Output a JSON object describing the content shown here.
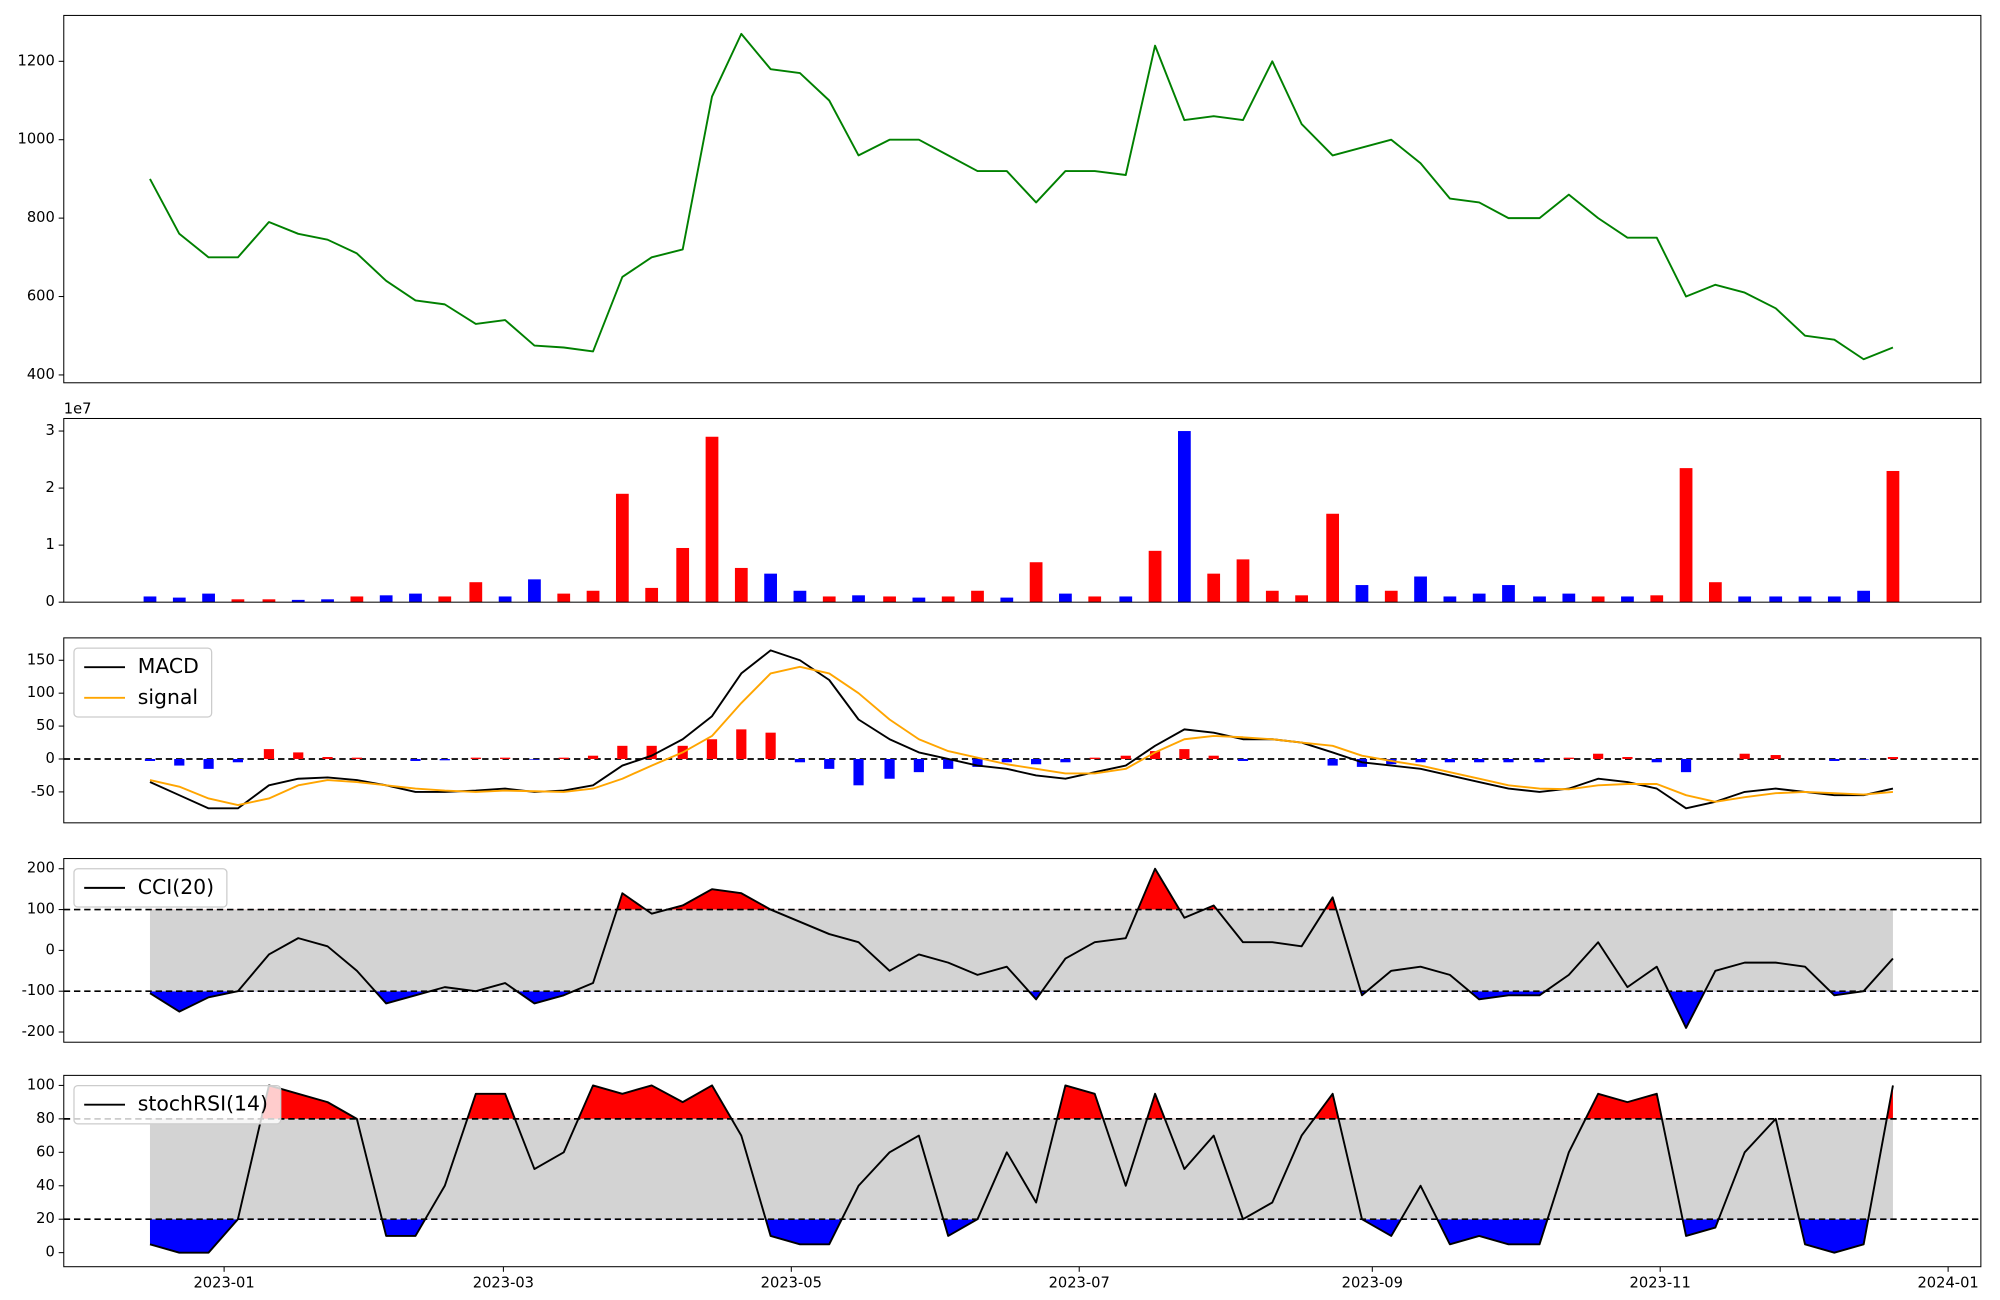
{
  "chart_data": [
    {
      "type": "line",
      "x": [
        2022.957,
        2022.974,
        2022.991,
        2023.008,
        2023.026,
        2023.043,
        2023.06,
        2023.077,
        2023.094,
        2023.111,
        2023.128,
        2023.146,
        2023.163,
        2023.18,
        2023.197,
        2023.214,
        2023.231,
        2023.248,
        2023.266,
        2023.283,
        2023.3,
        2023.317,
        2023.334,
        2023.351,
        2023.368,
        2023.386,
        2023.403,
        2023.42,
        2023.437,
        2023.454,
        2023.471,
        2023.488,
        2023.505,
        2023.523,
        2023.54,
        2023.557,
        2023.574,
        2023.591,
        2023.608,
        2023.625,
        2023.643,
        2023.66,
        2023.677,
        2023.694,
        2023.711,
        2023.728,
        2023.745,
        2023.763,
        2023.78,
        2023.797,
        2023.814,
        2023.831,
        2023.848,
        2023.865,
        2023.882,
        2023.9,
        2023.917,
        2023.934,
        2023.951,
        2023.968
      ],
      "series": [
        {
          "color": "#008000",
          "values": [
            900,
            760,
            700,
            700,
            790,
            760,
            745,
            710,
            640,
            590,
            580,
            530,
            540,
            475,
            470,
            460,
            650,
            700,
            720,
            1110,
            1270,
            1180,
            1170,
            1100,
            960,
            1000,
            1000,
            960,
            920,
            920,
            840,
            920,
            920,
            910,
            1240,
            1050,
            1060,
            1050,
            1200,
            1040,
            960,
            980,
            1000,
            940,
            850,
            840,
            800,
            800,
            860,
            800,
            750,
            750,
            600,
            630,
            610,
            570,
            500,
            490,
            440,
            470
          ]
        }
      ],
      "xlim": [
        2022.907,
        2024.019
      ],
      "ylim": [
        380,
        1317
      ],
      "yticks": [
        400,
        600,
        800,
        1000,
        1200
      ]
    },
    {
      "type": "bar",
      "x": [
        2022.957,
        2022.974,
        2022.991,
        2023.008,
        2023.026,
        2023.043,
        2023.06,
        2023.077,
        2023.094,
        2023.111,
        2023.128,
        2023.146,
        2023.163,
        2023.18,
        2023.197,
        2023.214,
        2023.231,
        2023.248,
        2023.266,
        2023.283,
        2023.3,
        2023.317,
        2023.334,
        2023.351,
        2023.368,
        2023.386,
        2023.403,
        2023.42,
        2023.437,
        2023.454,
        2023.471,
        2023.488,
        2023.505,
        2023.523,
        2023.54,
        2023.557,
        2023.574,
        2023.591,
        2023.608,
        2023.625,
        2023.643,
        2023.66,
        2023.677,
        2023.694,
        2023.711,
        2023.728,
        2023.745,
        2023.763,
        2023.78,
        2023.797,
        2023.814,
        2023.831,
        2023.848,
        2023.865,
        2023.882,
        2023.9,
        2023.917,
        2023.934,
        2023.951,
        2023.968
      ],
      "values": [
        1000000,
        800000,
        1500000,
        500000,
        500000,
        400000,
        500000,
        1000000,
        1200000,
        1500000,
        1000000,
        3500000,
        1000000,
        4000000,
        1500000,
        2000000,
        19000000,
        2500000,
        9500000,
        29000000,
        6000000,
        5000000,
        2000000,
        1000000,
        1200000,
        1000000,
        800000,
        1000000,
        2000000,
        800000,
        7000000,
        1500000,
        1000000,
        1000000,
        9000000,
        30000000,
        5000000,
        7500000,
        2000000,
        1200000,
        15500000,
        3000000,
        2000000,
        4500000,
        1000000,
        1500000,
        3000000,
        1000000,
        1500000,
        1000000,
        1000000,
        1200000,
        23500000,
        3500000,
        1000000,
        1000000,
        1000000,
        1000000,
        2000000,
        23000000
      ],
      "colors": [
        "blue",
        "blue",
        "blue",
        "red",
        "red",
        "blue",
        "blue",
        "red",
        "blue",
        "blue",
        "red",
        "red",
        "blue",
        "blue",
        "red",
        "red",
        "red",
        "red",
        "red",
        "red",
        "red",
        "blue",
        "blue",
        "red",
        "blue",
        "red",
        "blue",
        "red",
        "red",
        "blue",
        "red",
        "blue",
        "red",
        "blue",
        "red",
        "blue",
        "red",
        "red",
        "red",
        "red",
        "red",
        "blue",
        "red",
        "blue",
        "blue",
        "blue",
        "blue",
        "blue",
        "blue",
        "red",
        "blue",
        "red",
        "red",
        "red",
        "blue",
        "blue",
        "blue",
        "blue",
        "blue",
        "red"
      ],
      "offset_label": "1e7",
      "xlim": [
        2022.907,
        2024.019
      ],
      "ylim": [
        0,
        32200000
      ],
      "yticks": [
        0,
        {
          "value": 10000000,
          "label": "1"
        },
        {
          "value": 20000000,
          "label": "2"
        },
        {
          "value": 30000000,
          "label": "3"
        }
      ]
    },
    {
      "type": "line",
      "x": [
        2022.957,
        2022.974,
        2022.991,
        2023.008,
        2023.026,
        2023.043,
        2023.06,
        2023.077,
        2023.094,
        2023.111,
        2023.128,
        2023.146,
        2023.163,
        2023.18,
        2023.197,
        2023.214,
        2023.231,
        2023.248,
        2023.266,
        2023.283,
        2023.3,
        2023.317,
        2023.334,
        2023.351,
        2023.368,
        2023.386,
        2023.403,
        2023.42,
        2023.437,
        2023.454,
        2023.471,
        2023.488,
        2023.505,
        2023.523,
        2023.54,
        2023.557,
        2023.574,
        2023.591,
        2023.608,
        2023.625,
        2023.643,
        2023.66,
        2023.677,
        2023.694,
        2023.711,
        2023.728,
        2023.745,
        2023.763,
        2023.78,
        2023.797,
        2023.814,
        2023.831,
        2023.848,
        2023.865,
        2023.882,
        2023.9,
        2023.917,
        2023.934,
        2023.951,
        2023.968
      ],
      "series": [
        {
          "name": "MACD",
          "color": "#000000",
          "values": [
            -35,
            -55,
            -75,
            -75,
            -40,
            -30,
            -28,
            -32,
            -40,
            -50,
            -50,
            -48,
            -45,
            -50,
            -48,
            -40,
            -10,
            5,
            30,
            65,
            130,
            165,
            150,
            120,
            60,
            30,
            10,
            0,
            -10,
            -15,
            -25,
            -30,
            -20,
            -10,
            20,
            45,
            40,
            30,
            30,
            25,
            10,
            -5,
            -10,
            -15,
            -25,
            -35,
            -45,
            -50,
            -45,
            -30,
            -35,
            -45,
            -75,
            -65,
            -50,
            -45,
            -50,
            -55,
            -55,
            -45
          ]
        },
        {
          "name": "signal",
          "color": "#ffa500",
          "values": [
            -32,
            -42,
            -60,
            -70,
            -60,
            -40,
            -32,
            -35,
            -40,
            -45,
            -48,
            -50,
            -48,
            -49,
            -50,
            -45,
            -30,
            -10,
            10,
            35,
            85,
            130,
            140,
            130,
            100,
            60,
            30,
            12,
            2,
            -8,
            -15,
            -22,
            -22,
            -15,
            10,
            30,
            35,
            33,
            30,
            25,
            20,
            5,
            -3,
            -10,
            -20,
            -30,
            -40,
            -45,
            -46,
            -40,
            -38,
            -38,
            -55,
            -65,
            -58,
            -52,
            -50,
            -52,
            -54,
            -50
          ]
        }
      ],
      "histogram": {
        "pos_color": "#ff0000",
        "neg_color": "#0000ff",
        "values": [
          -3,
          -10,
          -15,
          -5,
          15,
          10,
          3,
          2,
          0,
          -3,
          -2,
          2,
          2,
          -1,
          2,
          5,
          20,
          20,
          20,
          30,
          45,
          40,
          -5,
          -15,
          -40,
          -30,
          -20,
          -15,
          -12,
          -5,
          -8,
          -5,
          2,
          5,
          12,
          15,
          5,
          -3,
          0,
          0,
          -10,
          -12,
          -8,
          -5,
          -5,
          -5,
          -5,
          -5,
          2,
          8,
          3,
          -5,
          -20,
          0,
          8,
          6,
          0,
          -3,
          -1,
          3
        ]
      },
      "hlines": [
        0
      ],
      "legend": "upper left",
      "xlim": [
        2022.907,
        2024.019
      ],
      "ylim": [
        -97,
        184
      ],
      "yticks": [
        -50,
        0,
        50,
        100,
        150
      ]
    },
    {
      "type": "line",
      "x": [
        2022.957,
        2022.974,
        2022.991,
        2023.008,
        2023.026,
        2023.043,
        2023.06,
        2023.077,
        2023.094,
        2023.111,
        2023.128,
        2023.146,
        2023.163,
        2023.18,
        2023.197,
        2023.214,
        2023.231,
        2023.248,
        2023.266,
        2023.283,
        2023.3,
        2023.317,
        2023.334,
        2023.351,
        2023.368,
        2023.386,
        2023.403,
        2023.42,
        2023.437,
        2023.454,
        2023.471,
        2023.488,
        2023.505,
        2023.523,
        2023.54,
        2023.557,
        2023.574,
        2023.591,
        2023.608,
        2023.625,
        2023.643,
        2023.66,
        2023.677,
        2023.694,
        2023.711,
        2023.728,
        2023.745,
        2023.763,
        2023.78,
        2023.797,
        2023.814,
        2023.831,
        2023.848,
        2023.865,
        2023.882,
        2023.9,
        2023.917,
        2023.934,
        2023.951,
        2023.968
      ],
      "series": [
        {
          "name": "CCI(20)",
          "color": "#000000",
          "values": [
            -105,
            -150,
            -115,
            -100,
            -10,
            30,
            10,
            -50,
            -130,
            -110,
            -90,
            -100,
            -80,
            -130,
            -110,
            -80,
            140,
            90,
            110,
            150,
            140,
            100,
            70,
            40,
            20,
            -50,
            -10,
            -30,
            -60,
            -40,
            -120,
            -20,
            20,
            30,
            200,
            80,
            110,
            20,
            20,
            10,
            130,
            -110,
            -50,
            -40,
            -60,
            -120,
            -110,
            -110,
            -60,
            20,
            -90,
            -40,
            -190,
            -50,
            -30,
            -30,
            -40,
            -110,
            -100,
            -20
          ]
        }
      ],
      "band": [
        -100,
        100
      ],
      "band_color": "#d3d3d3",
      "fills": [
        {
          "above": 100,
          "color": "#ff0000"
        },
        {
          "below": -100,
          "color": "#0000ff"
        }
      ],
      "hlines": [
        -100,
        100
      ],
      "legend": "upper left",
      "xlim": [
        2022.907,
        2024.019
      ],
      "ylim": [
        -225,
        225
      ],
      "yticks": [
        -200,
        -100,
        0,
        100,
        200
      ]
    },
    {
      "type": "line",
      "x": [
        2022.957,
        2022.974,
        2022.991,
        2023.008,
        2023.026,
        2023.043,
        2023.06,
        2023.077,
        2023.094,
        2023.111,
        2023.128,
        2023.146,
        2023.163,
        2023.18,
        2023.197,
        2023.214,
        2023.231,
        2023.248,
        2023.266,
        2023.283,
        2023.3,
        2023.317,
        2023.334,
        2023.351,
        2023.368,
        2023.386,
        2023.403,
        2023.42,
        2023.437,
        2023.454,
        2023.471,
        2023.488,
        2023.505,
        2023.523,
        2023.54,
        2023.557,
        2023.574,
        2023.591,
        2023.608,
        2023.625,
        2023.643,
        2023.66,
        2023.677,
        2023.694,
        2023.711,
        2023.728,
        2023.745,
        2023.763,
        2023.78,
        2023.797,
        2023.814,
        2023.831,
        2023.848,
        2023.865,
        2023.882,
        2023.9,
        2023.917,
        2023.934,
        2023.951,
        2023.968
      ],
      "series": [
        {
          "name": "stochRSI(14)",
          "color": "#000000",
          "values": [
            5,
            0,
            0,
            20,
            100,
            95,
            90,
            80,
            10,
            10,
            40,
            95,
            95,
            50,
            60,
            100,
            95,
            100,
            90,
            100,
            70,
            10,
            5,
            5,
            40,
            60,
            70,
            10,
            20,
            60,
            30,
            100,
            95,
            40,
            95,
            50,
            70,
            20,
            30,
            70,
            95,
            20,
            10,
            40,
            5,
            10,
            5,
            5,
            60,
            95,
            90,
            95,
            10,
            15,
            60,
            80,
            5,
            0,
            5,
            100
          ]
        }
      ],
      "band": [
        20,
        80
      ],
      "band_color": "#d3d3d3",
      "fills": [
        {
          "above": 80,
          "color": "#ff0000"
        },
        {
          "below": 20,
          "color": "#0000ff"
        }
      ],
      "hlines": [
        20,
        80
      ],
      "legend": "upper left",
      "xlim": [
        2022.907,
        2024.019
      ],
      "ylim": [
        -8.4,
        106
      ],
      "yticks": [
        0,
        20,
        40,
        60,
        80,
        100
      ],
      "xticks": [
        {
          "value": 2023.0,
          "label": "2023-01"
        },
        {
          "value": 2023.162,
          "label": "2023-03"
        },
        {
          "value": 2023.329,
          "label": "2023-05"
        },
        {
          "value": 2023.496,
          "label": "2023-07"
        },
        {
          "value": 2023.666,
          "label": "2023-09"
        },
        {
          "value": 2023.833,
          "label": "2023-11"
        },
        {
          "value": 2024.0,
          "label": "2024-01"
        }
      ]
    }
  ]
}
